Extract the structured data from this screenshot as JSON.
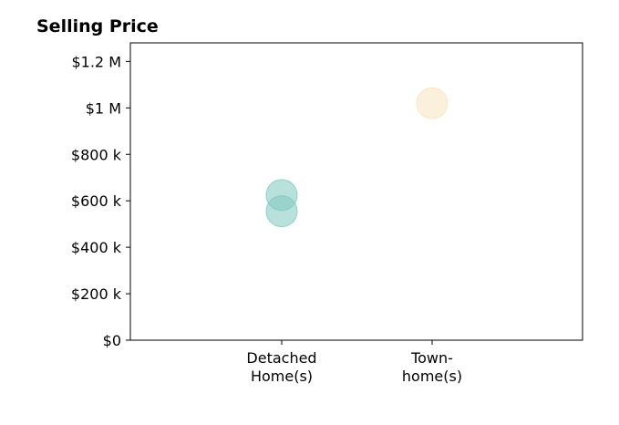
{
  "chart_data": {
    "type": "scatter",
    "title": "Selling Price",
    "xlabel": "",
    "ylabel": "",
    "categories": [
      [
        "Detached",
        "Home(s)"
      ],
      [
        "Town-",
        "home(s)"
      ]
    ],
    "ylim": [
      0,
      1280000
    ],
    "yticks": [
      0,
      200000,
      400000,
      600000,
      800000,
      1000000,
      1200000
    ],
    "ytick_labels": [
      "$0",
      "$200 k",
      "$400 k",
      "$600 k",
      "$800 k",
      "$1 M",
      "$1.2 M"
    ],
    "grid": false,
    "points": [
      {
        "category": "Detached Home(s)",
        "value": 625000,
        "color": "#7fc8bd"
      },
      {
        "category": "Detached Home(s)",
        "value": 555000,
        "color": "#7fc8bd"
      },
      {
        "category": "Town-home(s)",
        "value": 1020000,
        "color": "#f6e3bd"
      }
    ]
  }
}
